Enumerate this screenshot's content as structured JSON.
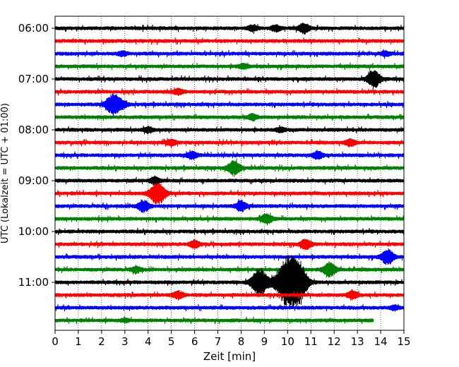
{
  "chart_data": {
    "type": "line",
    "subtype": "helicorder seismogram",
    "xlabel": "Zeit  [min]",
    "ylabel": "UTC (Lokalzeit = UTC + 01:00)",
    "xlim": [
      0,
      15
    ],
    "xticks": [
      "0",
      "1",
      "2",
      "3",
      "4",
      "5",
      "6",
      "7",
      "8",
      "9",
      "10",
      "11",
      "12",
      "13",
      "14",
      "15"
    ],
    "y_tick_labels": [
      "06:00",
      "07:00",
      "08:00",
      "09:00",
      "10:00",
      "11:00"
    ],
    "grid": "vertical dotted at each minute",
    "trace_colors": [
      "#000000",
      "#ff0000",
      "#0000ff",
      "#008000"
    ],
    "traces": [
      {
        "start": "06:00",
        "end_min": 15,
        "events": [
          {
            "t": 8.5,
            "amp": 4
          },
          {
            "t": 9.5,
            "amp": 4
          },
          {
            "t": 10.7,
            "amp": 7
          }
        ]
      },
      {
        "start": "06:15",
        "end_min": 15,
        "events": []
      },
      {
        "start": "06:30",
        "end_min": 15,
        "events": [
          {
            "t": 2.9,
            "amp": 3
          },
          {
            "t": 14.2,
            "amp": 3
          }
        ]
      },
      {
        "start": "06:45",
        "end_min": 15,
        "events": [
          {
            "t": 8.1,
            "amp": 3
          }
        ]
      },
      {
        "start": "07:00",
        "end_min": 15,
        "events": [
          {
            "t": 13.7,
            "amp": 12
          }
        ]
      },
      {
        "start": "07:15",
        "end_min": 15,
        "events": [
          {
            "t": 5.3,
            "amp": 4
          }
        ]
      },
      {
        "start": "07:30",
        "end_min": 15,
        "events": [
          {
            "t": 2.5,
            "amp": 15
          },
          {
            "t": 2.9,
            "amp": 4
          }
        ]
      },
      {
        "start": "07:45",
        "end_min": 15,
        "events": [
          {
            "t": 8.5,
            "amp": 4
          }
        ]
      },
      {
        "start": "08:00",
        "end_min": 15,
        "events": [
          {
            "t": 4.0,
            "amp": 4
          },
          {
            "t": 9.7,
            "amp": 3
          }
        ]
      },
      {
        "start": "08:15",
        "end_min": 15,
        "events": [
          {
            "t": 5.0,
            "amp": 4
          },
          {
            "t": 12.7,
            "amp": 5
          }
        ]
      },
      {
        "start": "08:30",
        "end_min": 15,
        "events": [
          {
            "t": 5.9,
            "amp": 5
          },
          {
            "t": 11.3,
            "amp": 5
          }
        ]
      },
      {
        "start": "08:45",
        "end_min": 15,
        "events": [
          {
            "t": 7.7,
            "amp": 10
          }
        ]
      },
      {
        "start": "09:00",
        "end_min": 15,
        "events": [
          {
            "t": 4.3,
            "amp": 5
          }
        ]
      },
      {
        "start": "09:15",
        "end_min": 15,
        "events": [
          {
            "t": 4.4,
            "amp": 17
          }
        ]
      },
      {
        "start": "09:30",
        "end_min": 15,
        "events": [
          {
            "t": 3.8,
            "amp": 8
          },
          {
            "t": 8.0,
            "amp": 7
          }
        ]
      },
      {
        "start": "09:45",
        "end_min": 15,
        "events": [
          {
            "t": 9.1,
            "amp": 7
          }
        ]
      },
      {
        "start": "10:00",
        "end_min": 15,
        "events": []
      },
      {
        "start": "10:15",
        "end_min": 15,
        "events": [
          {
            "t": 6.0,
            "amp": 5
          },
          {
            "t": 10.8,
            "amp": 7
          }
        ]
      },
      {
        "start": "10:30",
        "end_min": 15,
        "events": [
          {
            "t": 14.3,
            "amp": 10
          }
        ]
      },
      {
        "start": "10:45",
        "end_min": 15,
        "events": [
          {
            "t": 3.5,
            "amp": 4
          },
          {
            "t": 11.8,
            "amp": 10
          }
        ]
      },
      {
        "start": "11:00",
        "end_min": 15,
        "events": [
          {
            "t": 8.8,
            "amp": 20
          },
          {
            "t": 10.0,
            "amp": 35
          },
          {
            "t": 10.5,
            "amp": 22
          }
        ]
      },
      {
        "start": "11:15",
        "end_min": 15,
        "events": [
          {
            "t": 5.3,
            "amp": 5
          },
          {
            "t": 12.8,
            "amp": 5
          }
        ]
      },
      {
        "start": "11:30",
        "end_min": 15,
        "events": [
          {
            "t": 14.6,
            "amp": 3
          }
        ]
      },
      {
        "start": "11:45",
        "end_min": 13.7,
        "events": [
          {
            "t": 3.0,
            "amp": 2
          }
        ]
      }
    ]
  }
}
